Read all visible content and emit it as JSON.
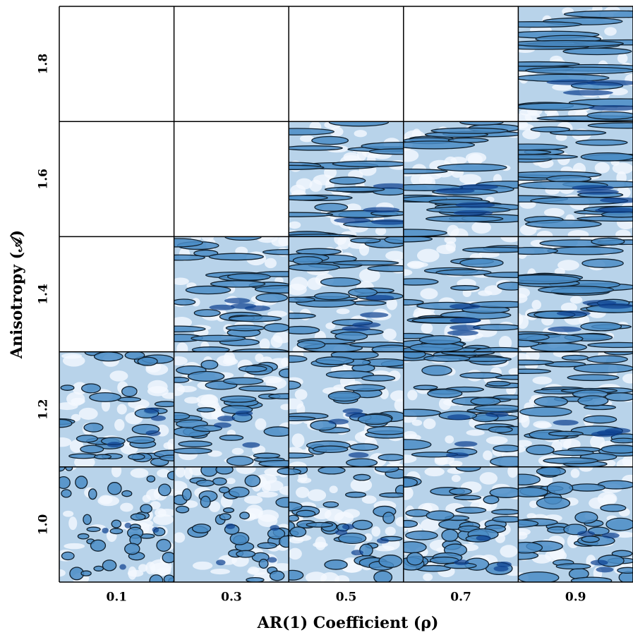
{
  "chart_data": {
    "type": "panel-grid",
    "xlabel": "AR(1) Coefficient (ρ)",
    "ylabel": "Anisotropy (𝒜)",
    "x_categories": [
      "0.1",
      "0.3",
      "0.5",
      "0.7",
      "0.9"
    ],
    "y_categories": [
      "1.0",
      "1.2",
      "1.4",
      "1.6",
      "1.8"
    ],
    "present": [
      [
        true,
        true,
        true,
        true,
        true
      ],
      [
        true,
        true,
        true,
        true,
        true
      ],
      [
        false,
        true,
        true,
        true,
        true
      ],
      [
        false,
        false,
        true,
        true,
        true
      ],
      [
        false,
        false,
        false,
        false,
        true
      ]
    ],
    "colormap": [
      "#f4f9ff",
      "#b8d3ea",
      "#4a8cc6",
      "#0b3f8f"
    ]
  }
}
